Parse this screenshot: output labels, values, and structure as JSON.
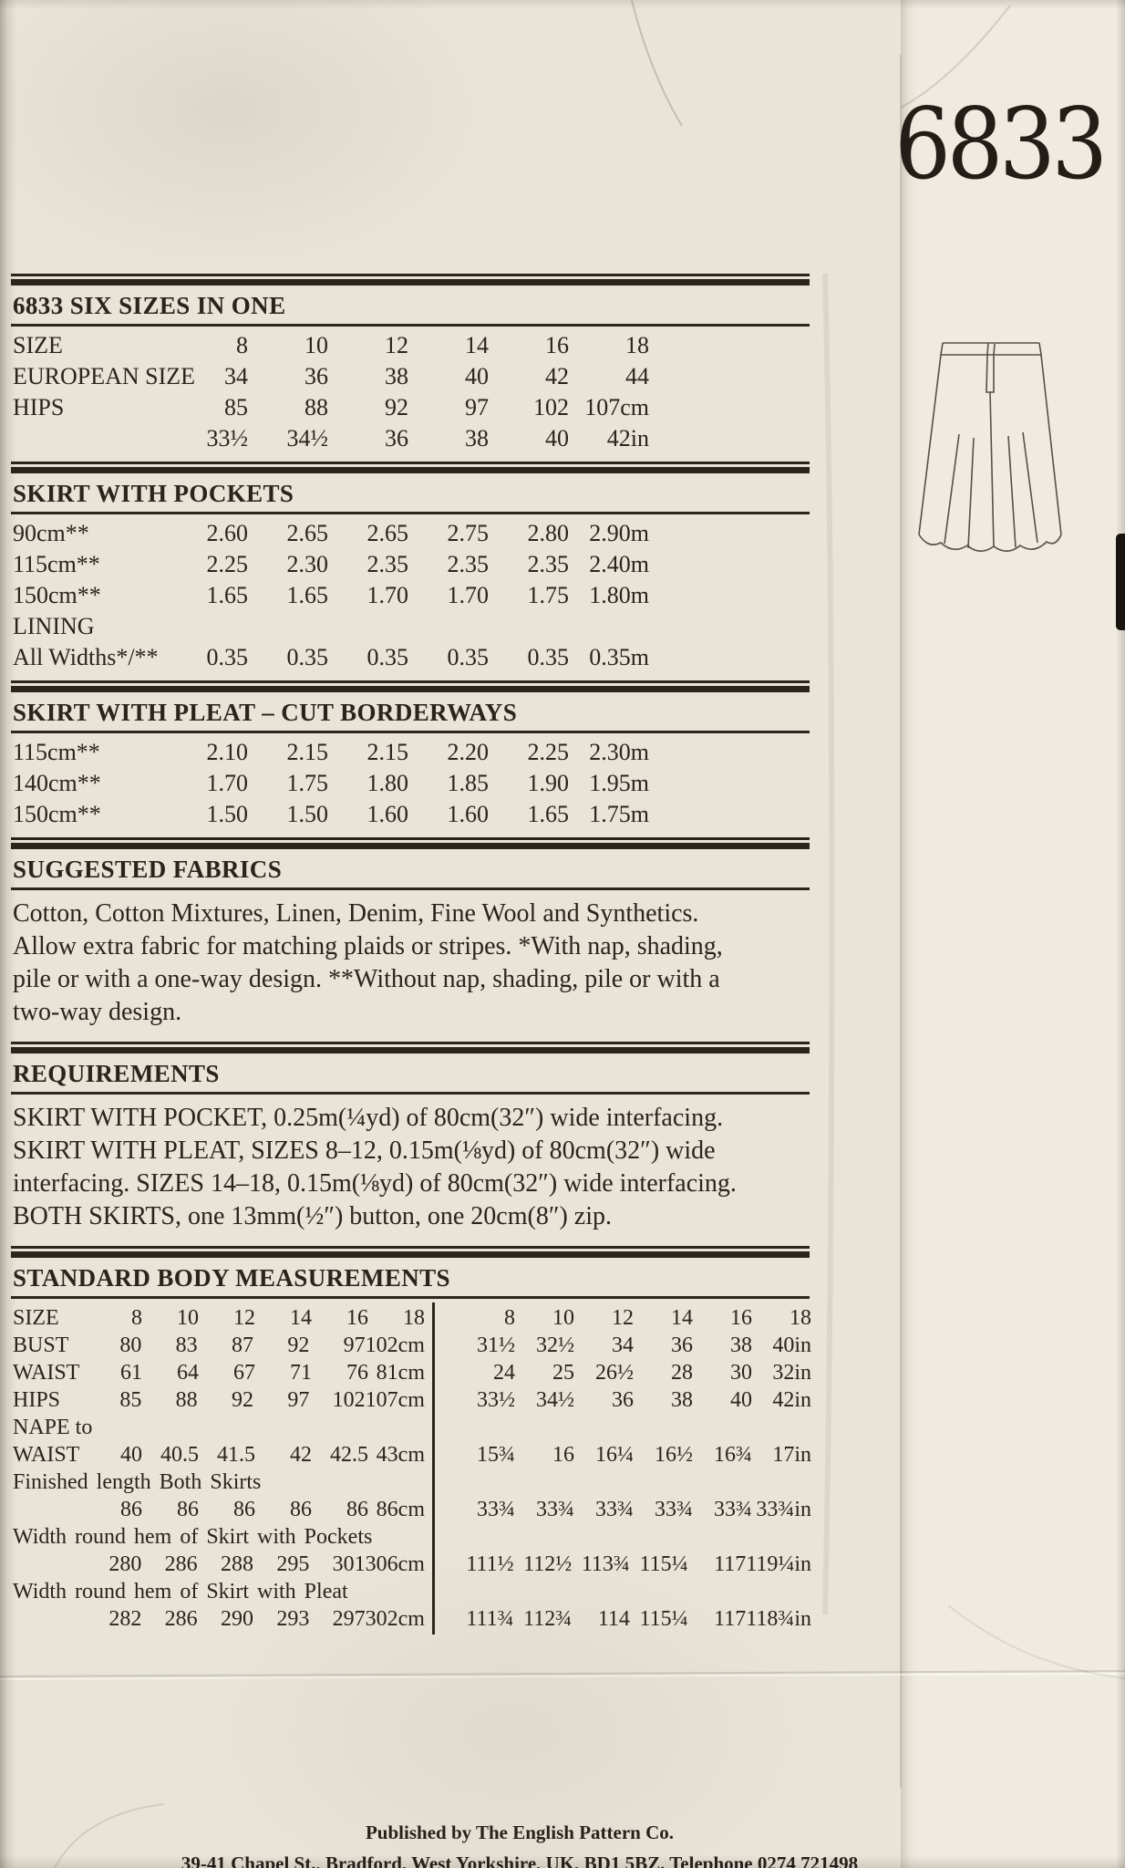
{
  "paper": {
    "pattern_number": "6833",
    "ink_color": "#2b241c",
    "paper_color": "#e8e4d8"
  },
  "sizes_table": {
    "title": "6833 SIX SIZES IN ONE",
    "rows": [
      {
        "label": "SIZE",
        "values": [
          "8",
          "10",
          "12",
          "14",
          "16",
          "18"
        ]
      },
      {
        "label": "EUROPEAN SIZE",
        "values": [
          "34",
          "36",
          "38",
          "40",
          "42",
          "44"
        ]
      },
      {
        "label": "HIPS",
        "values": [
          "85",
          "88",
          "92",
          "97",
          "102",
          "107cm"
        ]
      },
      {
        "label": "",
        "values": [
          "33½",
          "34½",
          "36",
          "38",
          "40",
          "42in"
        ]
      }
    ]
  },
  "pockets_table": {
    "title": "SKIRT WITH POCKETS",
    "rows": [
      {
        "label": "90cm**",
        "values": [
          "2.60",
          "2.65",
          "2.65",
          "2.75",
          "2.80",
          "2.90m"
        ]
      },
      {
        "label": "115cm**",
        "values": [
          "2.25",
          "2.30",
          "2.35",
          "2.35",
          "2.35",
          "2.40m"
        ]
      },
      {
        "label": "150cm**",
        "values": [
          "1.65",
          "1.65",
          "1.70",
          "1.70",
          "1.75",
          "1.80m"
        ]
      },
      {
        "label": "LINING",
        "values": []
      },
      {
        "label": "All Widths*/**",
        "values": [
          "0.35",
          "0.35",
          "0.35",
          "0.35",
          "0.35",
          "0.35m"
        ]
      }
    ]
  },
  "pleat_table": {
    "title": "SKIRT WITH PLEAT – CUT BORDERWAYS",
    "rows": [
      {
        "label": "115cm**",
        "values": [
          "2.10",
          "2.15",
          "2.15",
          "2.20",
          "2.25",
          "2.30m"
        ]
      },
      {
        "label": "140cm**",
        "values": [
          "1.70",
          "1.75",
          "1.80",
          "1.85",
          "1.90",
          "1.95m"
        ]
      },
      {
        "label": "150cm**",
        "values": [
          "1.50",
          "1.50",
          "1.60",
          "1.60",
          "1.65",
          "1.75m"
        ]
      }
    ]
  },
  "fabrics": {
    "title": "SUGGESTED FABRICS",
    "body": "Cotton, Cotton Mixtures, Linen, Denim, Fine Wool and Synthetics. Allow extra fabric for matching plaids or stripes. *With nap, shading, pile or with a one-way design. **Without nap, shading, pile or with a two-way design."
  },
  "requirements": {
    "title": "REQUIREMENTS",
    "body": "SKIRT WITH POCKET, 0.25m(¼yd) of 80cm(32″) wide interfacing. SKIRT WITH PLEAT, SIZES 8–12, 0.15m(⅛yd) of 80cm(32″) wide interfacing. SIZES 14–18, 0.15m(⅛yd) of 80cm(32″) wide interfacing. BOTH SKIRTS, one 13mm(½″) button, one 20cm(8″) zip."
  },
  "body_measurements": {
    "title": "STANDARD BODY MEASUREMENTS",
    "rows": [
      {
        "label": "SIZE",
        "cm": [
          "8",
          "10",
          "12",
          "14",
          "16",
          "18"
        ],
        "in": [
          "8",
          "10",
          "12",
          "14",
          "16",
          "18"
        ]
      },
      {
        "label": "BUST",
        "cm": [
          "80",
          "83",
          "87",
          "92",
          "97",
          "102cm"
        ],
        "in": [
          "31½",
          "32½",
          "34",
          "36",
          "38",
          "40in"
        ]
      },
      {
        "label": "WAIST",
        "cm": [
          "61",
          "64",
          "67",
          "71",
          "76",
          "81cm"
        ],
        "in": [
          "24",
          "25",
          "26½",
          "28",
          "30",
          "32in"
        ]
      },
      {
        "label": "HIPS",
        "cm": [
          "85",
          "88",
          "92",
          "97",
          "102",
          "107cm"
        ],
        "in": [
          "33½",
          "34½",
          "36",
          "38",
          "40",
          "42in"
        ]
      },
      {
        "label": "NAPE to",
        "cm": [],
        "in": []
      },
      {
        "label": "WAIST",
        "cm": [
          "40",
          "40.5",
          "41.5",
          "42",
          "42.5",
          "43cm"
        ],
        "in": [
          "15¾",
          "16",
          "16¼",
          "16½",
          "16¾",
          "17in"
        ]
      }
    ],
    "finished_length": {
      "label": "Finished length Both Skirts",
      "cm": [
        "86",
        "86",
        "86",
        "86",
        "86",
        "86cm"
      ],
      "in": [
        "33¾",
        "33¾",
        "33¾",
        "33¾",
        "33¾",
        "33¾in"
      ]
    },
    "hem_pockets": {
      "label": "Width round hem of Skirt with Pockets",
      "cm": [
        "280",
        "286",
        "288",
        "295",
        "301",
        "306cm"
      ],
      "in": [
        "111½",
        "112½",
        "113¾",
        "115¼",
        "117",
        "119¼in"
      ]
    },
    "hem_pleat": {
      "label": "Width round hem of Skirt with Pleat",
      "cm": [
        "282",
        "286",
        "290",
        "293",
        "297",
        "302cm"
      ],
      "in": [
        "111¾",
        "112¾",
        "114",
        "115¼",
        "117",
        "118¾in"
      ]
    }
  },
  "illustration": {
    "name": "skirt line drawing"
  },
  "footer": {
    "line1": "Published by The English Pattern Co.",
    "line2": "39-41 Chapel St., Bradford, West Yorkshire, UK, BD1 5BZ. Telephone 0274 721498"
  }
}
